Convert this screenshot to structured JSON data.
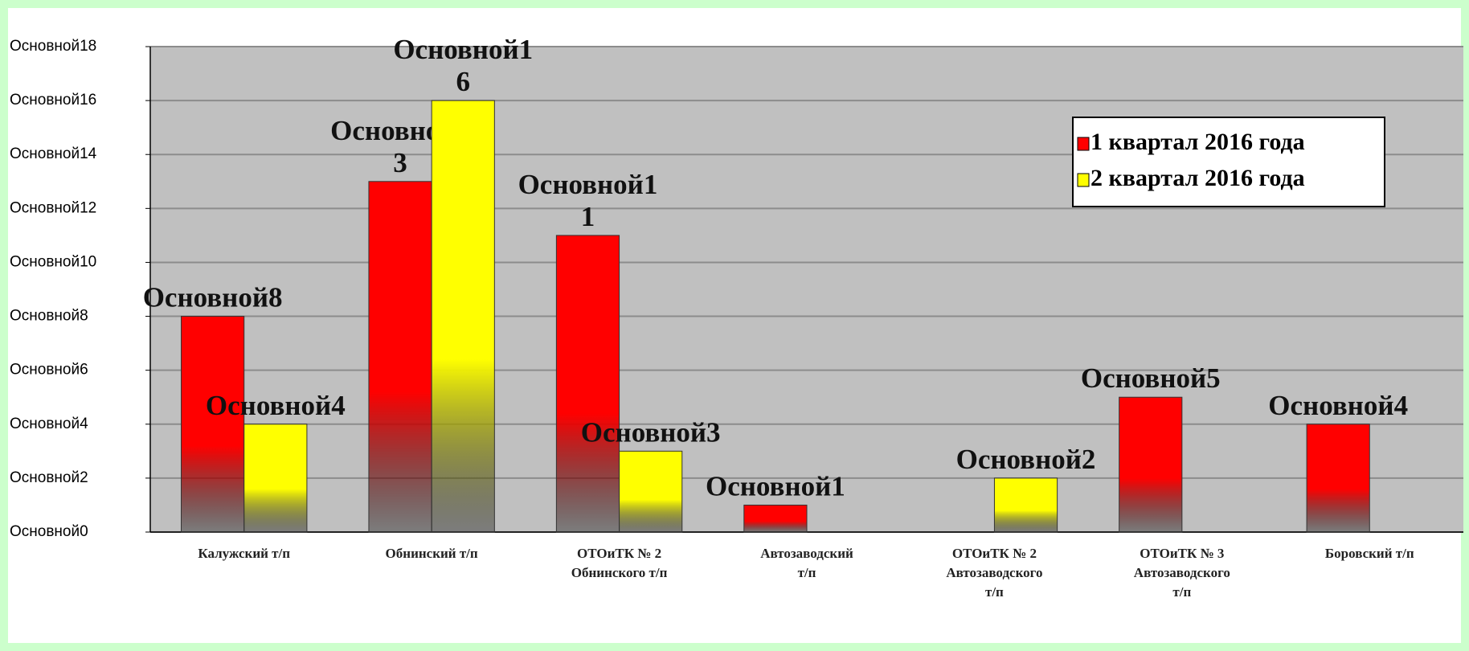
{
  "chart_data": {
    "type": "bar",
    "categories": [
      "Калужский т/п",
      "Обнинский т/п",
      "ОТОиТК № 2 Обнинского т/п",
      "Автозаводский т/п",
      "ОТОиТК № 2 Автозаводского т/п",
      "ОТОиТК № 3 Автозаводского т/п",
      "Боровский т/п"
    ],
    "series": [
      {
        "name": "1 квартал 2016 года",
        "color": "#ff0000",
        "values": [
          8,
          13,
          11,
          1,
          0,
          5,
          4
        ],
        "value_labels": [
          "Основной8",
          "Основной13",
          "Основной11",
          "Основной1",
          null,
          "Основной5",
          "Основной4"
        ]
      },
      {
        "name": "2 квартал 2016 года",
        "color": "#ffff00",
        "values": [
          4,
          16,
          3,
          0,
          2,
          0,
          0
        ],
        "value_labels": [
          "Основной4",
          "Основной16",
          "Основной3",
          null,
          "Основной2",
          null,
          null
        ]
      }
    ],
    "ylim": [
      0,
      18
    ],
    "yticks": [
      {
        "value": 0,
        "label": "Основной0"
      },
      {
        "value": 2,
        "label": "Основной2"
      },
      {
        "value": 4,
        "label": "Основной4"
      },
      {
        "value": 6,
        "label": "Основной6"
      },
      {
        "value": 8,
        "label": "Основной8"
      },
      {
        "value": 10,
        "label": "Основной10"
      },
      {
        "value": 12,
        "label": "Основной12"
      },
      {
        "value": 14,
        "label": "Основной14"
      },
      {
        "value": 16,
        "label": "Основной16"
      },
      {
        "value": 18,
        "label": "Основной18"
      }
    ],
    "grid": true,
    "legend": "upper right"
  }
}
